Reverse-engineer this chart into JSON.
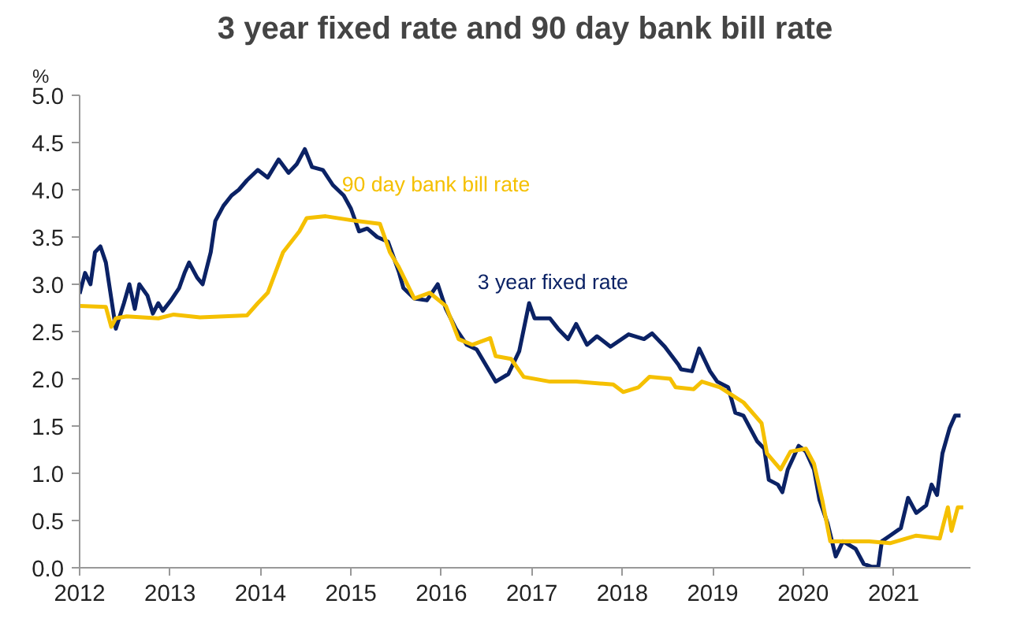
{
  "chart_data": {
    "type": "line",
    "title": "3 year fixed rate and 90 day bank bill rate",
    "ylabel": "%",
    "xlim": [
      2012,
      2021.85
    ],
    "xticks": [
      2012,
      2013,
      2014,
      2015,
      2016,
      2017,
      2018,
      2019,
      2020,
      2021
    ],
    "ylim": [
      0,
      5
    ],
    "yticks": [
      {
        "value": 0,
        "label": "0.0"
      },
      {
        "value": 0.5,
        "label": "0.5"
      },
      {
        "value": 1,
        "label": "1.0"
      },
      {
        "value": 1.5,
        "label": "1.5"
      },
      {
        "value": 2,
        "label": "2.0"
      },
      {
        "value": 2.5,
        "label": "2.5"
      },
      {
        "value": 3,
        "label": "3.0"
      },
      {
        "value": 3.5,
        "label": "3.5"
      },
      {
        "value": 4,
        "label": "4.0"
      },
      {
        "value": 4.5,
        "label": "4.5"
      },
      {
        "value": 5,
        "label": "5.0"
      }
    ],
    "grid": false,
    "legend": false,
    "series": [
      {
        "name": "3 year fixed rate",
        "color": "#0b2265",
        "x": [
          2012.0,
          2012.06,
          2012.12,
          2012.17,
          2012.23,
          2012.29,
          2012.35,
          2012.4,
          2012.49,
          2012.55,
          2012.61,
          2012.66,
          2012.75,
          2012.81,
          2012.87,
          2012.92,
          2013.01,
          2013.1,
          2013.16,
          2013.21,
          2013.3,
          2013.36,
          2013.45,
          2013.5,
          2013.59,
          2013.68,
          2013.76,
          2013.85,
          2013.97,
          2014.08,
          2014.2,
          2014.31,
          2014.4,
          2014.49,
          2014.57,
          2014.69,
          2014.8,
          2014.92,
          2015.0,
          2015.09,
          2015.18,
          2015.29,
          2015.41,
          2015.53,
          2015.58,
          2015.7,
          2015.84,
          2015.96,
          2016.05,
          2016.16,
          2016.28,
          2016.39,
          2016.6,
          2016.74,
          2016.86,
          2016.97,
          2017.03,
          2017.2,
          2017.29,
          2017.4,
          2017.49,
          2017.61,
          2017.72,
          2017.87,
          2018.07,
          2018.24,
          2018.33,
          2018.47,
          2018.62,
          2018.65,
          2018.77,
          2018.85,
          2018.97,
          2019.05,
          2019.17,
          2019.25,
          2019.34,
          2019.49,
          2019.57,
          2019.62,
          2019.72,
          2019.77,
          2019.83,
          2019.95,
          2020.03,
          2020.12,
          2020.18,
          2020.27,
          2020.36,
          2020.44,
          2020.58,
          2020.67,
          2020.76,
          2020.83,
          2020.87,
          2020.96,
          2021.08,
          2021.16,
          2021.25,
          2021.36,
          2021.42,
          2021.48,
          2021.54,
          2021.62,
          2021.68,
          2021.74
        ],
        "values": [
          2.9,
          3.12,
          3.0,
          3.34,
          3.4,
          3.23,
          2.85,
          2.53,
          2.8,
          3.0,
          2.74,
          3.0,
          2.88,
          2.69,
          2.8,
          2.72,
          2.83,
          2.96,
          3.12,
          3.23,
          3.07,
          3.0,
          3.34,
          3.67,
          3.83,
          3.94,
          4.0,
          4.1,
          4.21,
          4.13,
          4.32,
          4.18,
          4.27,
          4.43,
          4.24,
          4.21,
          4.05,
          3.94,
          3.8,
          3.56,
          3.59,
          3.5,
          3.45,
          3.13,
          2.96,
          2.85,
          2.83,
          3.0,
          2.74,
          2.53,
          2.36,
          2.31,
          1.97,
          2.05,
          2.29,
          2.8,
          2.64,
          2.64,
          2.53,
          2.42,
          2.58,
          2.36,
          2.45,
          2.34,
          2.47,
          2.42,
          2.48,
          2.34,
          2.15,
          2.1,
          2.08,
          2.32,
          2.08,
          1.97,
          1.91,
          1.64,
          1.61,
          1.34,
          1.26,
          0.93,
          0.88,
          0.8,
          1.04,
          1.29,
          1.23,
          1.04,
          0.72,
          0.47,
          0.12,
          0.28,
          0.2,
          0.04,
          0.01,
          0.01,
          0.28,
          0.34,
          0.42,
          0.74,
          0.58,
          0.66,
          0.88,
          0.77,
          1.21,
          1.48,
          1.61,
          1.61
        ]
      },
      {
        "name": "90 day bank bill rate",
        "color": "#f5c000",
        "x": [
          2012.0,
          2012.29,
          2012.35,
          2012.4,
          2012.52,
          2012.87,
          2013.04,
          2013.33,
          2013.85,
          2013.97,
          2014.08,
          2014.25,
          2014.43,
          2014.51,
          2014.72,
          2015.06,
          2015.32,
          2015.43,
          2015.53,
          2015.7,
          2015.87,
          2016.05,
          2016.19,
          2016.34,
          2016.54,
          2016.6,
          2016.77,
          2016.91,
          2017.2,
          2017.49,
          2017.9,
          2018.01,
          2018.18,
          2018.3,
          2018.53,
          2018.59,
          2018.79,
          2018.88,
          2019.08,
          2019.34,
          2019.54,
          2019.6,
          2019.75,
          2019.86,
          2020.03,
          2020.12,
          2020.21,
          2020.3,
          2020.5,
          2020.73,
          2020.96,
          2021.25,
          2021.51,
          2021.6,
          2021.64,
          2021.71,
          2021.77
        ],
        "values": [
          2.77,
          2.76,
          2.55,
          2.64,
          2.66,
          2.64,
          2.68,
          2.65,
          2.67,
          2.8,
          2.91,
          3.34,
          3.56,
          3.7,
          3.72,
          3.67,
          3.64,
          3.34,
          3.18,
          2.85,
          2.91,
          2.77,
          2.42,
          2.36,
          2.43,
          2.24,
          2.21,
          2.02,
          1.97,
          1.97,
          1.94,
          1.86,
          1.91,
          2.02,
          2.0,
          1.91,
          1.89,
          1.97,
          1.91,
          1.75,
          1.53,
          1.21,
          1.04,
          1.23,
          1.26,
          1.1,
          0.72,
          0.28,
          0.28,
          0.28,
          0.26,
          0.34,
          0.31,
          0.64,
          0.39,
          0.64,
          0.64
        ]
      }
    ]
  }
}
